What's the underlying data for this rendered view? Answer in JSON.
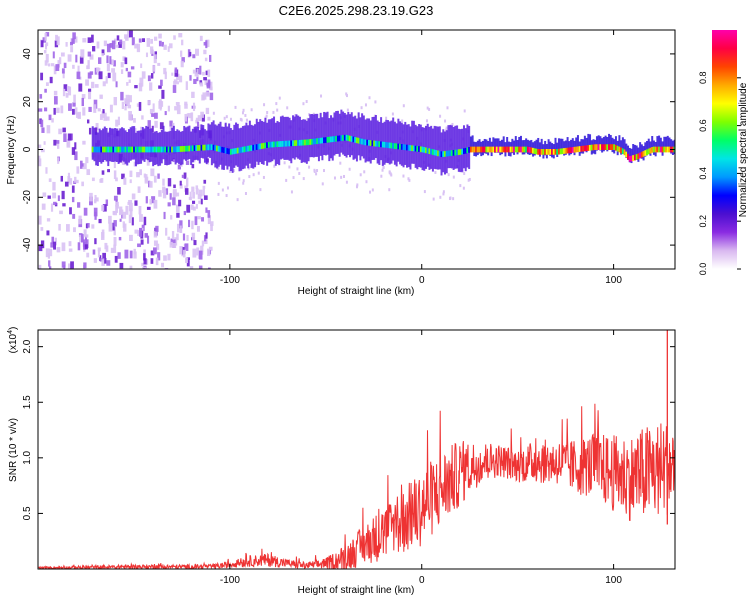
{
  "title": "C2E6.2025.298.23.19.G23",
  "chart_data": [
    {
      "type": "heatmap",
      "name": "spectrogram",
      "xlabel": "Height of straight line (km)",
      "ylabel": "Frequency (Hz)",
      "xlim": [
        -200,
        132
      ],
      "ylim": [
        -50,
        50
      ],
      "x_ticks": [
        -100,
        0,
        100
      ],
      "y_ticks": [
        -40,
        -20,
        0,
        20,
        40
      ],
      "colorbar": {
        "label": "Normalized spectral amplitude",
        "range": [
          0,
          1
        ],
        "ticks": [
          "0.0",
          "0.2",
          "0.4",
          "0.6",
          "0.8"
        ],
        "colors": [
          "#ffffff",
          "#d9b8f0",
          "#8a2be2",
          "#4b0fd0",
          "#0000ff",
          "#0099ff",
          "#00e5e5",
          "#00ff66",
          "#7fff00",
          "#ffff00",
          "#ffaa00",
          "#ff4400",
          "#ff0044",
          "#ff00aa"
        ]
      },
      "ridge": {
        "x": [
          -170,
          -130,
          -110,
          -100,
          -80,
          -60,
          -40,
          -30,
          -20,
          -10,
          0,
          10,
          20,
          25,
          40,
          55,
          60,
          70,
          80,
          90,
          100,
          105,
          108,
          112,
          120,
          132
        ],
        "frequency": [
          0,
          0,
          1,
          -1,
          2,
          3,
          5,
          3,
          2,
          1,
          0,
          -2,
          -1,
          0,
          0,
          0,
          -1,
          -1,
          0,
          1,
          1,
          -1,
          -4,
          -3,
          0,
          0
        ]
      }
    },
    {
      "type": "line",
      "name": "snr",
      "xlabel": "Height of straight line (km)",
      "ylabel": "SNR (10 * v/v)",
      "scale_label": "(x10",
      "scale_exponent": "4",
      "xlim": [
        -200,
        132
      ],
      "ylim": [
        0,
        2.15
      ],
      "x_ticks": [
        -100,
        0,
        100
      ],
      "y_ticks": [
        0.5,
        1.0,
        1.5,
        2.0
      ],
      "y_tick_labels": [
        "0.5",
        "1.0",
        "1.5",
        "2.0"
      ],
      "color": "#ee3333",
      "envelope": {
        "x": [
          -200,
          -150,
          -110,
          -100,
          -90,
          -80,
          -70,
          -60,
          -50,
          -40,
          -30,
          -20,
          -10,
          0,
          10,
          20,
          30,
          40,
          50,
          60,
          70,
          80,
          90,
          100,
          110,
          120,
          125,
          132
        ],
        "mean": [
          0.01,
          0.02,
          0.02,
          0.04,
          0.07,
          0.08,
          0.05,
          0.03,
          0.05,
          0.1,
          0.22,
          0.32,
          0.42,
          0.55,
          0.72,
          0.86,
          0.96,
          0.98,
          0.93,
          0.97,
          0.96,
          0.92,
          0.93,
          0.86,
          0.82,
          0.88,
          0.9,
          0.92
        ],
        "spread": [
          0.01,
          0.02,
          0.02,
          0.03,
          0.05,
          0.06,
          0.04,
          0.03,
          0.05,
          0.12,
          0.18,
          0.25,
          0.3,
          0.35,
          0.35,
          0.3,
          0.2,
          0.15,
          0.15,
          0.2,
          0.2,
          0.25,
          0.3,
          0.35,
          0.4,
          0.45,
          0.45,
          0.4
        ]
      },
      "peak": {
        "x": 128,
        "value": 2.15
      }
    }
  ]
}
